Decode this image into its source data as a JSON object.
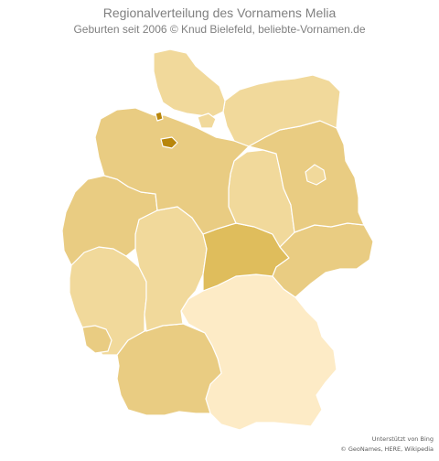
{
  "header": {
    "title": "Regionalverteilung des Vornamens Melia",
    "subtitle": "Geburten  seit 2006  © Knud Bielefeld, beliebte-Vornamen.de"
  },
  "attribution": {
    "line1": "Unterstützt von Bing",
    "line2": "© GeoNames, HERE, Wikipedia"
  },
  "colors": {
    "very_light": "#fdebc6",
    "light": "#f1d99b",
    "medium": "#e9cc82",
    "dark": "#dfbd5c",
    "highlight": "#b8860b"
  },
  "regions": [
    {
      "id": "schleswig-holstein",
      "shade": "light"
    },
    {
      "id": "hamburg",
      "shade": "light"
    },
    {
      "id": "mecklenburg-vorpommern",
      "shade": "light"
    },
    {
      "id": "niedersachsen",
      "shade": "medium"
    },
    {
      "id": "bremen",
      "shade": "highlight"
    },
    {
      "id": "bremerhaven",
      "shade": "highlight"
    },
    {
      "id": "berlin",
      "shade": "light"
    },
    {
      "id": "brandenburg",
      "shade": "medium"
    },
    {
      "id": "sachsen-anhalt",
      "shade": "light"
    },
    {
      "id": "nordrhein-westfalen",
      "shade": "medium"
    },
    {
      "id": "hessen",
      "shade": "light"
    },
    {
      "id": "thueringen",
      "shade": "dark"
    },
    {
      "id": "sachsen",
      "shade": "medium"
    },
    {
      "id": "rheinland-pfalz",
      "shade": "light"
    },
    {
      "id": "saarland",
      "shade": "medium"
    },
    {
      "id": "baden-wuerttemberg",
      "shade": "medium"
    },
    {
      "id": "bayern",
      "shade": "very_light"
    }
  ]
}
